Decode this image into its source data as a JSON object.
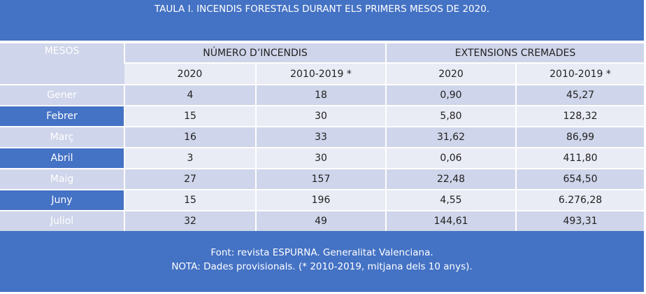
{
  "title": "TAULA I. INCENDIS FORESTALS DURANT ELS PRIMERS MESOS DE 2020.",
  "headers": {
    "mesos": "MESOS",
    "numero": "NÚMERO D’INCENDIS",
    "extensions": "EXTENSIONS CREMADES",
    "sub": [
      "2020",
      "2010-2019 *",
      "2020",
      "2010-2019 *"
    ]
  },
  "rows": [
    {
      "mes": "Gener",
      "n2020": "4",
      "n1019": "18",
      "e2020": "0,90",
      "e1019": "45,27"
    },
    {
      "mes": "Febrer",
      "n2020": "15",
      "n1019": "30",
      "e2020": "5,80",
      "e1019": "128,32"
    },
    {
      "mes": "Març",
      "n2020": "16",
      "n1019": "33",
      "e2020": "31,62",
      "e1019": "86,99"
    },
    {
      "mes": "Abril",
      "n2020": "3",
      "n1019": "30",
      "e2020": "0,06",
      "e1019": "411,80"
    },
    {
      "mes": "Maig",
      "n2020": "27",
      "n1019": "157",
      "e2020": "22,48",
      "e1019": "654,50"
    },
    {
      "mes": "Juny",
      "n2020": "15",
      "n1019": "196",
      "e2020": "4,55",
      "e1019": "6.276,28"
    },
    {
      "mes": "Juliol",
      "n2020": "32",
      "n1019": "49",
      "e2020": "144,61",
      "e1019": "493,31"
    }
  ],
  "footer": {
    "line1": "Font: revista ESPURNA. Generalitat Valenciana.",
    "line2": "NOTA: Dades provisionals. (* 2010-2019, mitjana dels 10 anys)."
  },
  "colors": {
    "header_blue": "#4472C4",
    "band_dark": "#CFD5EA",
    "band_light": "#E9EBF5"
  }
}
